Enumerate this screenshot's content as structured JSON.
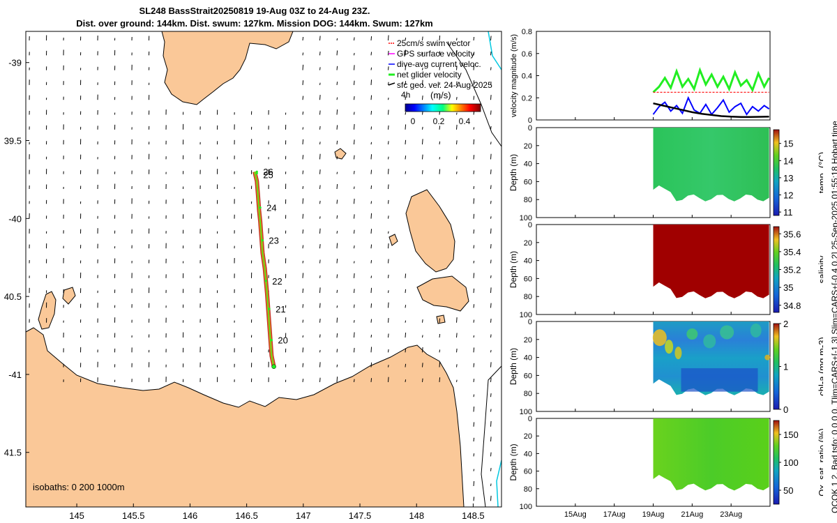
{
  "header": {
    "title_line1": "SL248 BassStrait20250819 19-Aug 03Z to 24-Aug 23Z.",
    "title_line2": "Dist. over ground: 144km. Dist. swum: 127km. Mission DOG: 144km. Swum: 127km"
  },
  "side_label": "QCOK 1  2. Bad tsfo: 0  0  0  0. Tlim=CARS+[-1 3] Slim=CARS+[-0.4 0.2] 25-Sep-2025 01:55:18 Hobart time",
  "colors": {
    "land": "#fac898",
    "track_green": "#22ee22",
    "swim": "#ff0000",
    "gps": "#ff00ff",
    "dive": "#0000ff",
    "sfc": "#000000"
  },
  "map": {
    "lon_ticks": [
      "145",
      "145.5",
      "146",
      "146.5",
      "147",
      "147.5",
      "148",
      "148.5"
    ],
    "lat_ticks": [
      "-39",
      "39.5",
      "-40",
      "40.5",
      "-41",
      "41.5"
    ],
    "isobaths_label": "isobaths: 0   200  1000m",
    "legend": {
      "items": [
        "25cm/s swim vector",
        "GPS surface velocity",
        "dive-avg current veloc.",
        "net glider velocity",
        "sfc geo. vel. 24-Aug-2025"
      ],
      "interval_label": "4h",
      "units": "(m/s)",
      "colorbar_ticks": [
        "0",
        "0.2",
        "0.4"
      ]
    },
    "day_labels": [
      "25",
      "26",
      "24",
      "23",
      "22",
      "21",
      "20"
    ]
  },
  "chart_data": [
    {
      "type": "map",
      "title": "SL248 BassStrait20250819 19-Aug 03Z to 24-Aug 23Z.",
      "xlim": [
        144.55,
        148.75
      ],
      "ylim": [
        -41.85,
        -38.8
      ],
      "track": [
        [
          146.74,
          -40.95
        ],
        [
          146.72,
          -40.88
        ],
        [
          146.71,
          -40.78
        ],
        [
          146.7,
          -40.68
        ],
        [
          146.69,
          -40.58
        ],
        [
          146.68,
          -40.48
        ],
        [
          146.67,
          -40.4
        ],
        [
          146.66,
          -40.32
        ],
        [
          146.64,
          -40.22
        ],
        [
          146.63,
          -40.12
        ],
        [
          146.62,
          -40.02
        ],
        [
          146.61,
          -39.95
        ],
        [
          146.6,
          -39.85
        ],
        [
          146.59,
          -39.76
        ],
        [
          146.57,
          -39.7
        ]
      ],
      "day_markers": [
        {
          "label": "20",
          "lon": 146.72,
          "lat": -40.78
        },
        {
          "label": "21",
          "lon": 146.7,
          "lat": -40.58
        },
        {
          "label": "22",
          "lon": 146.67,
          "lat": -40.4
        },
        {
          "label": "23",
          "lon": 146.64,
          "lat": -40.14
        },
        {
          "label": "24",
          "lon": 146.62,
          "lat": -39.93
        },
        {
          "label": "25",
          "lon": 146.59,
          "lat": -39.71
        },
        {
          "label": "26",
          "lon": 146.59,
          "lat": -39.7
        }
      ]
    },
    {
      "type": "line",
      "ylabel": "velocity magnitude (m/s)",
      "ylim": [
        0,
        0.8
      ],
      "yticks": [
        "0",
        "0.2",
        "0.4",
        "0.6",
        "0.8"
      ],
      "x_range_days": [
        13,
        25
      ],
      "series": [
        {
          "name": "net glider velocity",
          "x": [
            19.0,
            19.3,
            19.6,
            19.9,
            20.2,
            20.5,
            20.8,
            21.1,
            21.4,
            21.7,
            22.0,
            22.3,
            22.6,
            22.9,
            23.2,
            23.5,
            23.8,
            24.1,
            24.4,
            24.7,
            24.95
          ],
          "values": [
            0.25,
            0.3,
            0.38,
            0.29,
            0.44,
            0.3,
            0.37,
            0.28,
            0.45,
            0.32,
            0.41,
            0.3,
            0.39,
            0.28,
            0.43,
            0.31,
            0.36,
            0.27,
            0.42,
            0.3,
            0.38
          ]
        },
        {
          "name": "dive-avg current veloc.",
          "x": [
            19.0,
            19.3,
            19.6,
            19.9,
            20.2,
            20.5,
            20.8,
            21.1,
            21.4,
            21.7,
            22.0,
            22.3,
            22.6,
            22.9,
            23.2,
            23.5,
            23.8,
            24.1,
            24.4,
            24.7,
            24.95
          ],
          "values": [
            0.05,
            0.12,
            0.16,
            0.08,
            0.13,
            0.06,
            0.2,
            0.09,
            0.06,
            0.14,
            0.05,
            0.11,
            0.18,
            0.07,
            0.12,
            0.15,
            0.05,
            0.12,
            0.08,
            0.13,
            0.1
          ]
        },
        {
          "name": "sfc geo. vel.",
          "x": [
            19.0,
            19.5,
            20.0,
            20.5,
            21.0,
            21.5,
            22.0,
            22.5,
            23.0,
            23.5,
            24.0,
            24.5,
            24.95
          ],
          "values": [
            0.15,
            0.13,
            0.11,
            0.09,
            0.07,
            0.055,
            0.045,
            0.035,
            0.03,
            0.027,
            0.027,
            0.028,
            0.03
          ]
        },
        {
          "name": "25cm/s swim vector",
          "x": [
            19.0,
            24.95
          ],
          "values": [
            0.25,
            0.25
          ]
        }
      ]
    },
    {
      "type": "heatmap",
      "ylabel": "Depth (m)",
      "ylim": [
        100,
        0
      ],
      "yticks": [
        "0",
        "20",
        "40",
        "60",
        "80",
        "100"
      ],
      "clabel": "temp. (°C)",
      "clim": [
        10.8,
        15.8
      ],
      "cticks": [
        "11",
        "12",
        "13",
        "14",
        "15"
      ],
      "value_range": [
        12.6,
        13.6
      ]
    },
    {
      "type": "heatmap",
      "ylabel": "Depth (m)",
      "ylim": [
        100,
        0
      ],
      "yticks": [
        "0",
        "20",
        "40",
        "60",
        "80",
        "100"
      ],
      "clabel": "salinity",
      "clim": [
        34.72,
        35.68
      ],
      "cticks": [
        "34.8",
        "35",
        "35.2",
        "35.4",
        "35.6"
      ],
      "value_range": [
        35.66,
        35.72
      ]
    },
    {
      "type": "heatmap",
      "ylabel": "Depth (m)",
      "ylim": [
        100,
        0
      ],
      "yticks": [
        "0",
        "20",
        "40",
        "60",
        "80",
        "100"
      ],
      "clabel": "chl-a (mg m-3)",
      "clim": [
        0,
        2
      ],
      "cticks": [
        "0",
        "1",
        "2"
      ],
      "value_range": [
        0.4,
        1.8
      ]
    },
    {
      "type": "heatmap",
      "ylabel": "Depth (m)",
      "ylim": [
        100,
        0
      ],
      "yticks": [
        "0",
        "20",
        "40",
        "60",
        "80",
        "100"
      ],
      "clabel": "Ox. sat. ratio (%)",
      "clim": [
        25,
        175
      ],
      "cticks": [
        "50",
        "100",
        "150"
      ],
      "value_range": [
        100,
        130
      ],
      "xticks": [
        "15Aug",
        "17Aug",
        "19Aug",
        "21Aug",
        "23Aug"
      ]
    }
  ]
}
